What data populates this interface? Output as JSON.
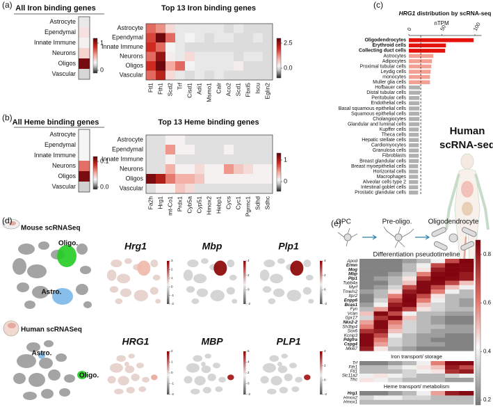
{
  "panel_labels": [
    "(a)",
    "(b)",
    "(c)",
    "(d)",
    "(e)"
  ],
  "chart_data": [
    {
      "type": "heatmap",
      "title": "All Iron binding genes",
      "rows": [
        "Astrocyte",
        "Ependymal",
        "Innate Immune",
        "Neurons",
        "Oligos",
        "Vascular"
      ],
      "values": [
        0.25,
        0.35,
        0.3,
        0.4,
        1.1,
        0.2
      ],
      "clim": [
        -0.1,
        1.18
      ],
      "cticks": [
        1,
        0
      ]
    },
    {
      "type": "heatmap",
      "title": "Top 13 Iron binding genes",
      "rows": [
        "Astrocyte",
        "Ependymal",
        "Innate Immune",
        "Neurons",
        "Oligos",
        "Vascular"
      ],
      "columns": [
        "Ftl1",
        "Fth1",
        "Scd2",
        "Trf",
        "Cisd1",
        "Adi1",
        "Msmo1",
        "Calr",
        "Aco2",
        "Scd1",
        "Fbxl5",
        "Iscu",
        "Eglin2"
      ],
      "values": [
        [
          1.5,
          1.2,
          0.5,
          0.1,
          0.1,
          0.1,
          0.1,
          0.1,
          0,
          0.1,
          0,
          0,
          0
        ],
        [
          1.8,
          2.8,
          1.5,
          0.1,
          0.2,
          0.1,
          0,
          0.1,
          0.1,
          0,
          0,
          0.1,
          0
        ],
        [
          2.0,
          1.5,
          0.2,
          0.1,
          0,
          0,
          0,
          0,
          0,
          0,
          0,
          0,
          0
        ],
        [
          1.5,
          2.5,
          0.3,
          0.1,
          0.5,
          0.1,
          0.1,
          0.1,
          0.1,
          0,
          0.1,
          0.1,
          0
        ],
        [
          2.0,
          2.8,
          1.0,
          1.5,
          0.2,
          0.1,
          0.1,
          0.1,
          0.1,
          0.3,
          0,
          0,
          0
        ],
        [
          1.5,
          2.2,
          0.5,
          0.1,
          0,
          0.1,
          0,
          0.1,
          0,
          0,
          0,
          0,
          0
        ]
      ],
      "clim": [
        -0.97,
        2.99
      ],
      "cticks": [
        2.5,
        {
          "value": 0,
          "label": "0.0"
        }
      ]
    },
    {
      "type": "heatmap",
      "title": "All Heme binding genes",
      "rows": [
        "Astrocyte",
        "Ependymal",
        "Innate Immune",
        "Neurons",
        "Oligos",
        "Vascular"
      ],
      "values": [
        0.03,
        0.03,
        0.03,
        0.07,
        0.11,
        0.02
      ],
      "clim": [
        -0.008,
        0.119
      ],
      "cticks": [
        0.1,
        {
          "value": 0,
          "label": "0.0"
        }
      ]
    },
    {
      "type": "heatmap",
      "title": "Top 13 Heme binding genes",
      "rows": [
        "Astrocyte",
        "Ependymal",
        "Innate Immune",
        "Neurons",
        "Oligos",
        "Vascular"
      ],
      "columns": [
        "Fa2h",
        "Hrg1",
        "mt-Co1",
        "Prdx1",
        "Cyb5a",
        "Cyp51",
        "Hmox2",
        "Hebp1",
        "Cycs",
        "Cyc1",
        "Pgrmc1",
        "Sdhd",
        "Sdhc"
      ],
      "values": [
        [
          0,
          0,
          0.1,
          0.1,
          0,
          0,
          0,
          0,
          0,
          0,
          0,
          0,
          0
        ],
        [
          0,
          0,
          0.5,
          0.1,
          0.1,
          0,
          0,
          0,
          0.1,
          0,
          0,
          0,
          0
        ],
        [
          0,
          0,
          0.1,
          0,
          0,
          0,
          0,
          0,
          0,
          0,
          0,
          0,
          0
        ],
        [
          0,
          0,
          0.4,
          0.1,
          0.1,
          0.2,
          0.1,
          0.1,
          0.5,
          0.3,
          0.2,
          0.1,
          0.1
        ],
        [
          1.2,
          1.0,
          0.6,
          0.4,
          0.4,
          0.3,
          0.1,
          0.1,
          0.1,
          0.1,
          0.1,
          0.1,
          0.1
        ],
        [
          0,
          0.1,
          0.1,
          0.3,
          0.2,
          0,
          0,
          0,
          0,
          0,
          0,
          0,
          0
        ]
      ],
      "clim": [
        -0.45,
        1.32
      ],
      "cticks": [
        1,
        0
      ]
    },
    {
      "type": "bar",
      "orientation": "horizontal",
      "title_gene": "HRG1",
      "title": "distribution by scRNA-seq",
      "xlabel": "nTPM",
      "annotation": [
        "Human",
        "scRNA-seq"
      ],
      "categories": [
        "Oligodendrocytes",
        "Erythroid cells",
        "Collecting duct cells",
        "Astrocytes",
        "Adipocytes",
        "Proximal tubular cells",
        "Leydig cells",
        "monocytes",
        "Muller glia cells",
        "Hofbauer cells",
        "Distal tubular cells",
        "Peritubular cells",
        "Endothelial cells",
        "Basal squamous epithelial cells",
        "Squamous epithelial cells",
        "Cholangiocytes",
        "Glandular and luminal cells",
        "Kupffer cells",
        "Theca cells",
        "Hepatic stellate cells",
        "Cardiomyocytes",
        "Granulosa cells",
        "Fibroblasts",
        "Breast glandular cells",
        "Breast myoepithelial cells",
        "Horizontal cells",
        "Macrophages",
        "Alveolar cells type 2",
        "Intestinal goblet cells",
        "Prostatic glandular cells"
      ],
      "values": [
        98,
        56,
        55,
        37,
        35,
        34,
        33,
        32,
        32,
        17,
        17,
        16,
        16,
        16,
        16,
        16,
        16,
        15,
        15,
        15,
        15,
        15,
        15,
        15,
        14,
        14,
        14,
        14,
        14,
        14
      ],
      "colors": [
        "#e3120b",
        "#e3120b",
        "#e3120b",
        "#f2a093",
        "#f2a093",
        "#f2a093",
        "#f2a093",
        "#f2a093",
        "#f2a093",
        "#b0b0b0",
        "#b0b0b0",
        "#b0b0b0",
        "#b0b0b0",
        "#b0b0b0",
        "#b0b0b0",
        "#b0b0b0",
        "#b0b0b0",
        "#b0b0b0",
        "#b0b0b0",
        "#b0b0b0",
        "#b0b0b0",
        "#b0b0b0",
        "#b0b0b0",
        "#b0b0b0",
        "#b0b0b0",
        "#b0b0b0",
        "#b0b0b0",
        "#b0b0b0",
        "#b0b0b0",
        "#b0b0b0"
      ],
      "xlim": [
        0,
        110
      ],
      "xticks": [
        0,
        50,
        100
      ],
      "reference_line": 18
    },
    {
      "type": "pseudotime",
      "stages": [
        "OPC",
        "Pre-oligo.",
        "Oligodendrocyte"
      ],
      "groups": [
        {
          "title": "Differentiation pseudotimeline",
          "rows": [
            "Apod",
            "Ermn",
            "Mog",
            "Mbp",
            "Plp1",
            "Tubb4a",
            "Myrf",
            "Tmem2",
            "Itpr2",
            "Enpp6",
            "Bcas1",
            "Fyn",
            "Vcan",
            "Gpr17",
            "Nkx2-2",
            "Sh3bp4",
            "Sox6",
            "Kcnip3",
            "Pdgfra",
            "Cspg4",
            "Mki67"
          ],
          "bold": [
            false,
            true,
            true,
            true,
            true,
            false,
            false,
            false,
            false,
            true,
            true,
            false,
            false,
            false,
            true,
            false,
            false,
            false,
            true,
            true,
            false
          ],
          "values": [
            [
              0.2,
              0.2,
              0.2,
              0.25,
              0.3,
              0.4,
              0.7,
              0.85
            ],
            [
              0.2,
              0.2,
              0.2,
              0.3,
              0.4,
              0.7,
              0.85,
              0.84
            ],
            [
              0.2,
              0.2,
              0.2,
              0.3,
              0.45,
              0.8,
              0.85,
              0.84
            ],
            [
              0.2,
              0.2,
              0.25,
              0.35,
              0.6,
              0.84,
              0.85,
              0.8
            ],
            [
              0.2,
              0.25,
              0.3,
              0.45,
              0.75,
              0.85,
              0.84,
              0.8
            ],
            [
              0.2,
              0.2,
              0.3,
              0.5,
              0.84,
              0.84,
              0.7,
              0.5
            ],
            [
              0.2,
              0.25,
              0.35,
              0.7,
              0.84,
              0.7,
              0.5,
              0.4
            ],
            [
              0.25,
              0.3,
              0.45,
              0.8,
              0.84,
              0.6,
              0.4,
              0.3
            ],
            [
              0.2,
              0.3,
              0.6,
              0.84,
              0.7,
              0.45,
              0.3,
              0.3
            ],
            [
              0.2,
              0.35,
              0.7,
              0.85,
              0.6,
              0.4,
              0.3,
              0.25
            ],
            [
              0.25,
              0.4,
              0.8,
              0.84,
              0.5,
              0.35,
              0.3,
              0.25
            ],
            [
              0.3,
              0.55,
              0.84,
              0.7,
              0.45,
              0.35,
              0.3,
              0.3
            ],
            [
              0.5,
              0.84,
              0.7,
              0.4,
              0.3,
              0.3,
              0.25,
              0.25
            ],
            [
              0.35,
              0.75,
              0.84,
              0.5,
              0.3,
              0.25,
              0.2,
              0.2
            ],
            [
              0.55,
              0.84,
              0.6,
              0.35,
              0.3,
              0.25,
              0.2,
              0.2
            ],
            [
              0.6,
              0.84,
              0.55,
              0.35,
              0.3,
              0.3,
              0.25,
              0.25
            ],
            [
              0.75,
              0.8,
              0.5,
              0.35,
              0.3,
              0.25,
              0.25,
              0.25
            ],
            [
              0.84,
              0.7,
              0.4,
              0.3,
              0.25,
              0.25,
              0.2,
              0.2
            ],
            [
              0.84,
              0.6,
              0.35,
              0.3,
              0.25,
              0.2,
              0.2,
              0.2
            ],
            [
              0.84,
              0.55,
              0.35,
              0.3,
              0.25,
              0.25,
              0.2,
              0.2
            ],
            [
              0.8,
              0.45,
              0.3,
              0.25,
              0.2,
              0.2,
              0.2,
              0.2
            ]
          ]
        },
        {
          "title": "Iron transport/ storage",
          "rows": [
            "Trf",
            "Fth1",
            "Ftl1",
            "Slc11a2",
            "Tfrc"
          ],
          "bold": [
            false,
            false,
            false,
            false,
            false
          ],
          "values": [
            [
              0.2,
              0.2,
              0.25,
              0.3,
              0.4,
              0.6,
              0.84,
              0.84
            ],
            [
              0.3,
              0.3,
              0.35,
              0.4,
              0.45,
              0.5,
              0.8,
              0.7
            ],
            [
              0.3,
              0.3,
              0.3,
              0.35,
              0.4,
              0.45,
              0.75,
              0.8
            ],
            [
              0.4,
              0.45,
              0.4,
              0.35,
              0.3,
              0.3,
              0.35,
              0.4
            ],
            [
              0.45,
              0.4,
              0.35,
              0.3,
              0.3,
              0.3,
              0.25,
              0.25
            ]
          ]
        },
        {
          "title": "Heme transport/ metabolism",
          "rows": [
            "Hrg1",
            "Hmox2",
            "Hmox1"
          ],
          "bold": [
            true,
            false,
            false
          ],
          "values": [
            [
              0.2,
              0.2,
              0.25,
              0.3,
              0.4,
              0.55,
              0.8,
              0.84
            ],
            [
              0.35,
              0.4,
              0.4,
              0.35,
              0.35,
              0.3,
              0.3,
              0.3
            ],
            [
              0.3,
              0.3,
              0.3,
              0.3,
              0.3,
              0.3,
              0.3,
              0.3
            ]
          ]
        }
      ],
      "clim": [
        0.18,
        0.86
      ],
      "cticks": [
        0.8,
        0.6,
        0.4,
        0.2
      ]
    }
  ],
  "panel_d": {
    "mouse": {
      "title": "Mouse scRNASeq",
      "oligo": "Oligo.",
      "astro": "Astro.",
      "maps": [
        {
          "gene": "Hrg1",
          "ticks": [
            3,
            2,
            1,
            0,
            -1,
            -2
          ]
        },
        {
          "gene": "Mbp",
          "ticks": [
            4,
            2,
            0,
            -2
          ]
        },
        {
          "gene": "Plp1",
          "ticks": [
            4,
            2,
            0,
            -2
          ]
        }
      ]
    },
    "human": {
      "title": "Human scRNASeq",
      "oligo": "Oligo.",
      "astro": "Astro.",
      "maps": [
        {
          "gene": "HRG1",
          "ticks": [
            2,
            1,
            0,
            -1,
            -2
          ]
        },
        {
          "gene": "MBP",
          "ticks": [
            6,
            4,
            2,
            0,
            -2
          ]
        },
        {
          "gene": "PLP1",
          "ticks": [
            4,
            2,
            0,
            -2
          ]
        }
      ]
    }
  }
}
